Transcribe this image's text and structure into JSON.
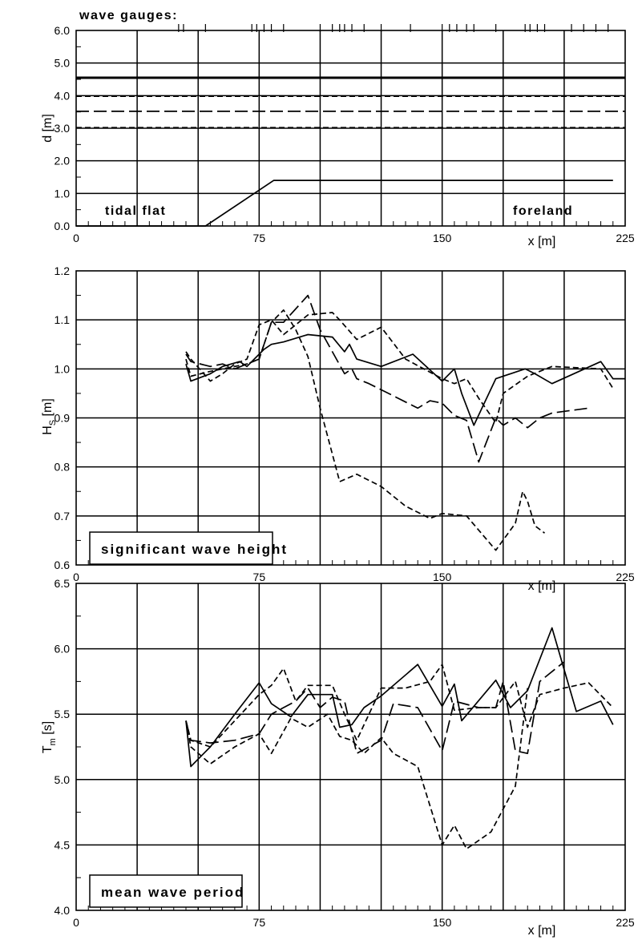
{
  "chart_data": [
    {
      "type": "line",
      "ylabel": "d  [m]",
      "xlabel": "x  [m]",
      "xlim": [
        0,
        225
      ],
      "ylim": [
        0.0,
        6.0
      ],
      "x_tick_labels": [
        "0",
        "75",
        "150",
        "225"
      ],
      "y_tick_labels": [
        "0.0",
        "1.0",
        "2.0",
        "3.0",
        "4.0",
        "5.0",
        "6.0"
      ],
      "grid": true,
      "gauges_label": "wave gauges:",
      "gauge_positions": [
        42,
        44,
        53,
        72,
        74,
        77,
        80,
        85,
        100,
        105,
        108,
        110,
        113,
        118,
        125,
        137,
        150,
        153,
        156,
        160,
        163,
        172,
        184,
        186,
        189,
        192,
        203,
        208,
        213,
        218
      ],
      "annotations": [
        "tidal flat",
        "foreland"
      ],
      "series": [
        {
          "style": "solid",
          "x": [
            0,
            53,
            81,
            220
          ],
          "values": [
            0.0,
            0.0,
            1.4,
            1.4
          ]
        },
        {
          "style": "thick-solid",
          "x": [
            0,
            225
          ],
          "values": [
            4.55,
            4.55
          ]
        },
        {
          "style": "short-dash",
          "x": [
            0,
            225
          ],
          "values": [
            3.98,
            3.98
          ]
        },
        {
          "style": "long-dash",
          "x": [
            0,
            225
          ],
          "values": [
            3.52,
            3.52
          ]
        },
        {
          "style": "short-dash",
          "x": [
            0,
            225
          ],
          "values": [
            3.02,
            3.02
          ]
        }
      ]
    },
    {
      "type": "line",
      "ylabel": "H",
      "ylabel_sub": "S",
      "ylabel_unit": "[m]",
      "xlabel": "x  [m]",
      "xlim": [
        0,
        225
      ],
      "ylim": [
        0.6,
        1.2
      ],
      "x_tick_labels": [
        "0",
        "75",
        "150",
        "225"
      ],
      "y_tick_labels": [
        "0.6",
        "0.7",
        "0.8",
        "0.9",
        "1.0",
        "1.1",
        "1.2"
      ],
      "grid": true,
      "annotation": "significant wave height",
      "series": [
        {
          "style": "solid",
          "x": [
            45,
            47,
            55,
            60,
            67,
            70,
            73,
            77,
            80,
            85,
            95,
            105,
            110,
            112,
            115,
            125,
            138,
            150,
            155,
            158,
            163,
            172,
            178,
            184,
            188,
            195,
            215,
            220,
            225
          ],
          "values": [
            1.01,
            0.975,
            0.99,
            1.005,
            1.015,
            1.005,
            1.02,
            1.04,
            1.05,
            1.055,
            1.07,
            1.065,
            1.035,
            1.05,
            1.02,
            1.005,
            1.03,
            0.975,
            1.0,
            0.95,
            0.885,
            0.98,
            0.99,
            1.0,
            0.99,
            0.97,
            1.015,
            0.98,
            0.98
          ]
        },
        {
          "style": "short-dash",
          "x": [
            45,
            47,
            55,
            60,
            65,
            70,
            75,
            80,
            85,
            95,
            105,
            108,
            115,
            125,
            135,
            150,
            155,
            160,
            165,
            172,
            175,
            185,
            195,
            215,
            220
          ],
          "values": [
            1.035,
            1.02,
            0.975,
            0.99,
            1.01,
            1.02,
            1.09,
            1.1,
            1.07,
            1.11,
            1.115,
            1.1,
            1.06,
            1.085,
            1.02,
            0.98,
            0.97,
            0.98,
            0.94,
            0.89,
            0.95,
            0.985,
            1.005,
            1.0,
            0.96
          ]
        },
        {
          "style": "long-dash",
          "x": [
            45,
            47,
            55,
            60,
            65,
            70,
            75,
            80,
            85,
            95,
            100,
            110,
            113,
            115,
            120,
            130,
            140,
            145,
            150,
            155,
            160,
            165,
            172,
            175,
            180,
            185,
            190,
            195,
            210
          ],
          "values": [
            1.03,
            1.015,
            1.005,
            1.01,
            1.0,
            1.01,
            1.02,
            1.095,
            1.095,
            1.15,
            1.08,
            0.99,
            1.0,
            0.98,
            0.97,
            0.945,
            0.92,
            0.935,
            0.93,
            0.905,
            0.895,
            0.81,
            0.9,
            0.885,
            0.9,
            0.88,
            0.9,
            0.91,
            0.92
          ]
        },
        {
          "style": "short-dash",
          "x": [
            45,
            47,
            55,
            60,
            65,
            70,
            75,
            80,
            85,
            90,
            95,
            100,
            108,
            115,
            125,
            135,
            145,
            150,
            160,
            172,
            180,
            183,
            185,
            188,
            192
          ],
          "values": [
            1.02,
            0.985,
            0.995,
            1.0,
            1.005,
            1.01,
            1.02,
            1.095,
            1.12,
            1.08,
            1.025,
            0.92,
            0.77,
            0.785,
            0.76,
            0.72,
            0.695,
            0.705,
            0.7,
            0.63,
            0.685,
            0.75,
            0.73,
            0.68,
            0.665
          ]
        }
      ]
    },
    {
      "type": "line",
      "ylabel": "T",
      "ylabel_sub": "m",
      "ylabel_unit": "[s]",
      "xlabel": "x  [m]",
      "xlim": [
        0,
        225
      ],
      "ylim": [
        4.0,
        6.5
      ],
      "x_tick_labels": [
        "0",
        "75",
        "150",
        "225"
      ],
      "y_tick_labels": [
        "4.0",
        "4.5",
        "5.0",
        "5.5",
        "6.0",
        "6.5"
      ],
      "grid": true,
      "annotation": "mean wave period",
      "series": [
        {
          "style": "solid",
          "x": [
            45,
            47,
            55,
            65,
            75,
            80,
            88,
            95,
            103,
            105,
            108,
            113,
            118,
            125,
            140,
            150,
            155,
            158,
            163,
            172,
            178,
            185,
            195,
            205,
            215,
            220
          ],
          "values": [
            5.45,
            5.1,
            5.25,
            5.5,
            5.74,
            5.58,
            5.48,
            5.65,
            5.65,
            5.65,
            5.4,
            5.42,
            5.55,
            5.64,
            5.88,
            5.56,
            5.73,
            5.45,
            5.56,
            5.76,
            5.55,
            5.68,
            6.16,
            5.52,
            5.6,
            5.42
          ]
        },
        {
          "style": "short-dash",
          "x": [
            45,
            47,
            55,
            65,
            75,
            80,
            85,
            90,
            95,
            105,
            110,
            115,
            125,
            135,
            145,
            150,
            155,
            165,
            172,
            180,
            185,
            190,
            200,
            210,
            220
          ],
          "values": [
            5.45,
            5.3,
            5.25,
            5.45,
            5.65,
            5.72,
            5.85,
            5.6,
            5.72,
            5.72,
            5.5,
            5.3,
            5.7,
            5.7,
            5.75,
            5.88,
            5.53,
            5.55,
            5.55,
            5.75,
            5.4,
            5.65,
            5.7,
            5.74,
            5.55
          ]
        },
        {
          "style": "long-dash",
          "x": [
            45,
            47,
            55,
            65,
            75,
            80,
            85,
            90,
            95,
            100,
            105,
            110,
            115,
            125,
            130,
            140,
            150,
            155,
            165,
            172,
            175,
            180,
            185,
            190,
            200
          ],
          "values": [
            5.45,
            5.3,
            5.28,
            5.3,
            5.35,
            5.5,
            5.55,
            5.6,
            5.7,
            5.55,
            5.63,
            5.6,
            5.2,
            5.3,
            5.58,
            5.55,
            5.22,
            5.6,
            5.55,
            5.55,
            5.75,
            5.22,
            5.2,
            5.75,
            5.9
          ]
        },
        {
          "style": "short-dash",
          "x": [
            45,
            47,
            55,
            65,
            75,
            80,
            88,
            95,
            103,
            108,
            113,
            118,
            125,
            130,
            140,
            150,
            155,
            160,
            170,
            180,
            185
          ],
          "values": [
            5.45,
            5.25,
            5.12,
            5.25,
            5.35,
            5.2,
            5.47,
            5.4,
            5.5,
            5.33,
            5.3,
            5.2,
            5.32,
            5.2,
            5.1,
            4.5,
            4.65,
            4.47,
            4.6,
            4.95,
            5.7
          ]
        }
      ]
    }
  ]
}
